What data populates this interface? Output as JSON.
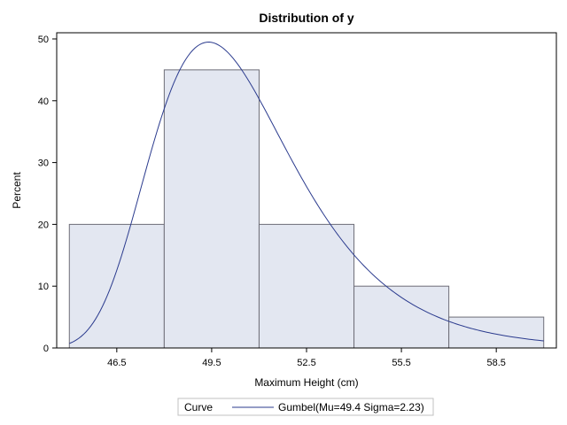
{
  "chart_data": {
    "type": "bar",
    "title": "Distribution of y",
    "xlabel": "Maximum Height (cm)",
    "ylabel": "Percent",
    "bins": [
      {
        "left": 45.0,
        "right": 48.0,
        "value": 20
      },
      {
        "left": 48.0,
        "right": 51.0,
        "value": 45
      },
      {
        "left": 51.0,
        "right": 54.0,
        "value": 20
      },
      {
        "left": 54.0,
        "right": 57.0,
        "value": 10
      },
      {
        "left": 57.0,
        "right": 60.0,
        "value": 5
      }
    ],
    "xlim": [
      44.6,
      60.4
    ],
    "ylim": [
      0,
      51
    ],
    "x_ticks": [
      46.5,
      49.5,
      52.5,
      55.5,
      58.5
    ],
    "x_tick_labels": [
      "46.5",
      "49.5",
      "52.5",
      "55.5",
      "58.5"
    ],
    "y_ticks": [
      0,
      10,
      20,
      30,
      40,
      50
    ],
    "y_tick_labels": [
      "0",
      "10",
      "20",
      "30",
      "40",
      "50"
    ],
    "curve": {
      "distribution": "Gumbel",
      "mu": 49.4,
      "sigma": 2.23,
      "scale_percent_per_unit": 3.0
    },
    "legend": {
      "label": "Curve",
      "entries": [
        "Gumbel(Mu=49.4 Sigma=2.23)"
      ],
      "position": "bottom-center"
    },
    "grid": false,
    "colors": {
      "bar_fill": "#e3e7f1",
      "bar_stroke": "#6e6e78",
      "curve": "#2b3b8e",
      "frame": "#000000",
      "legend_border": "#c0c0c0"
    }
  }
}
